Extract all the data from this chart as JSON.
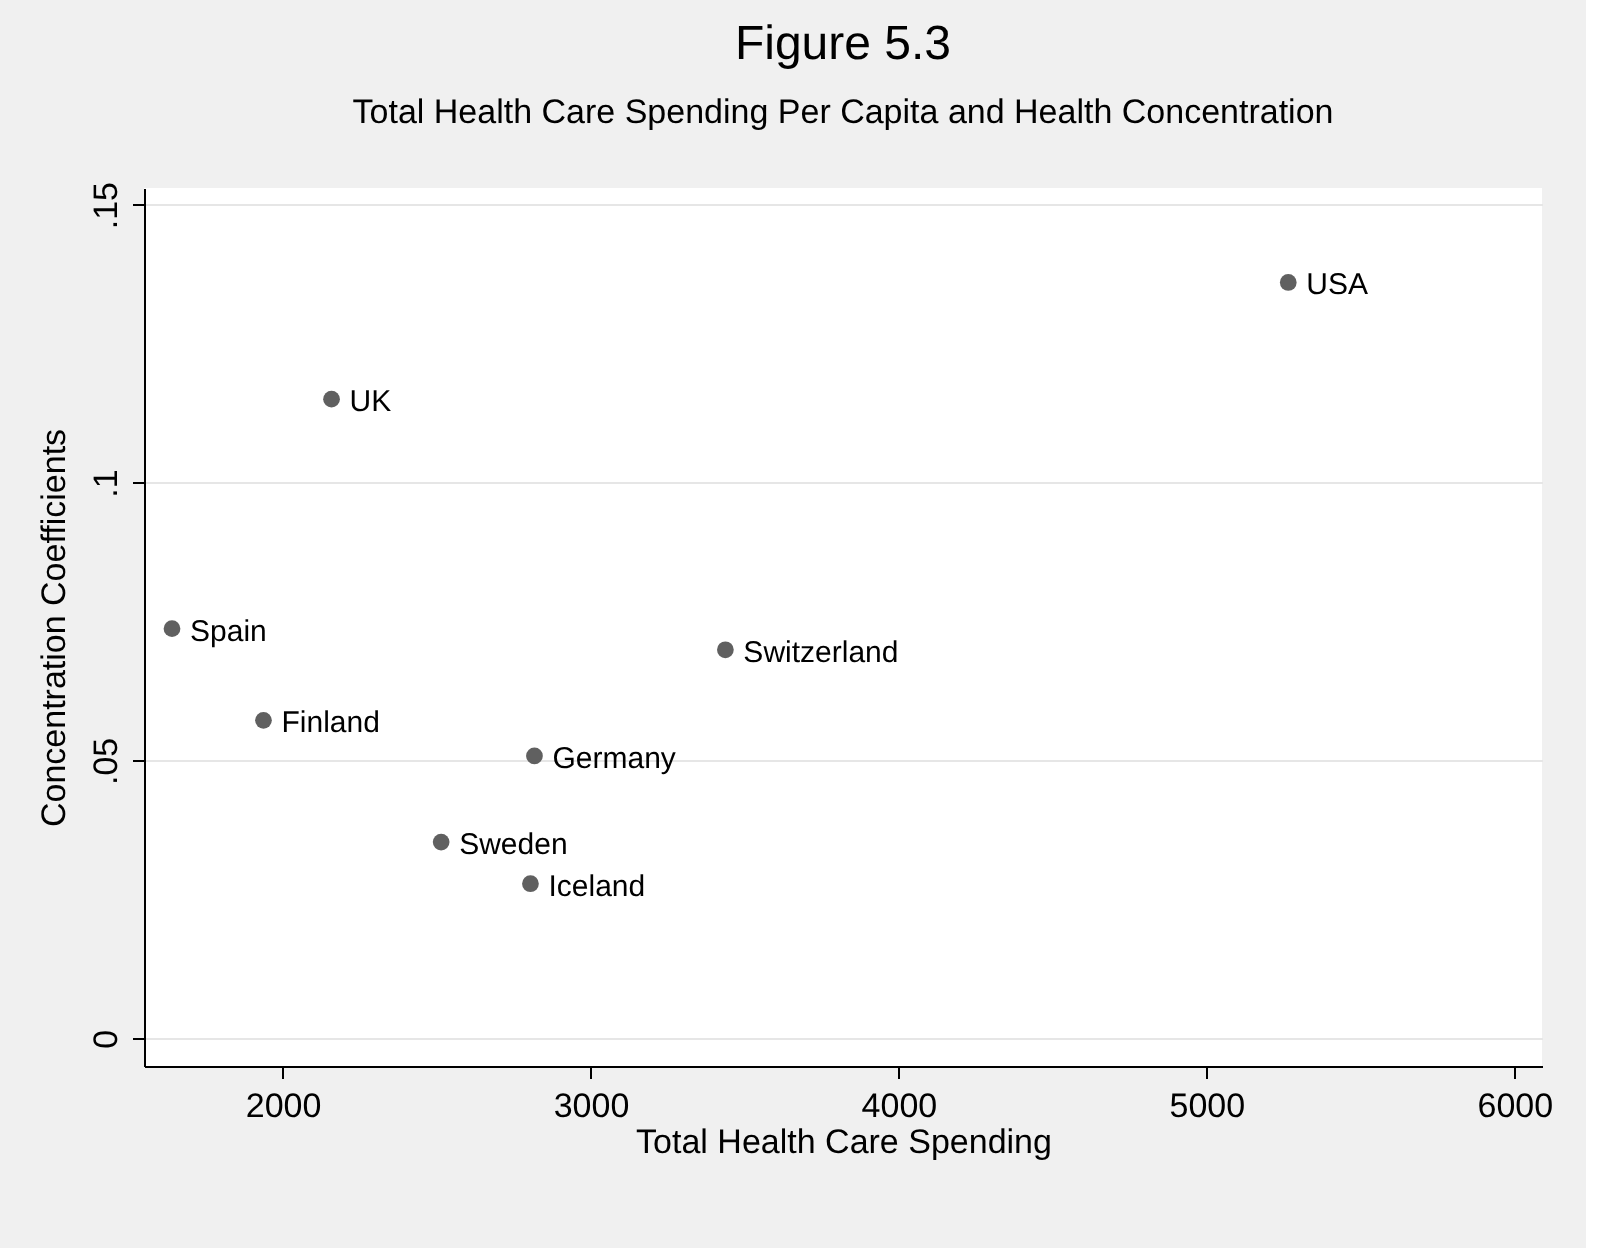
{
  "chart_data": {
    "type": "scatter",
    "title": "Figure 5.3",
    "subtitle": "Total Health Care Spending Per Capita and Health Concentration",
    "xlabel": "Total Health Care Spending",
    "ylabel": "Concentration Coefficients",
    "series": [
      {
        "color": "#606060",
        "x": [
          5266,
          2159,
          1641,
          3438,
          1938,
          2818,
          2515,
          2805
        ],
        "values": [
          0.136,
          0.115,
          0.0737,
          0.0699,
          0.0572,
          0.0508,
          0.0353,
          0.0278
        ]
      }
    ],
    "annotations": [
      {
        "text": "USA",
        "x": 5266,
        "y": 0.136
      },
      {
        "text": "UK",
        "x": 2159,
        "y": 0.115
      },
      {
        "text": "Spain",
        "x": 1641,
        "y": 0.0737
      },
      {
        "text": "Switzerland",
        "x": 3438,
        "y": 0.0699
      },
      {
        "text": "Finland",
        "x": 1938,
        "y": 0.0572
      },
      {
        "text": "Germany",
        "x": 2818,
        "y": 0.0508
      },
      {
        "text": "Sweden",
        "x": 2515,
        "y": 0.0353
      },
      {
        "text": "Iceland",
        "x": 2805,
        "y": 0.0278
      }
    ],
    "xlim": [
      1550,
      6090
    ],
    "ylim": [
      -0.005,
      0.153
    ],
    "xticks": [
      2000,
      3000,
      4000,
      5000,
      6000
    ],
    "yticks": [
      {
        "value": 0,
        "label": "0"
      },
      {
        "value": 0.05,
        "label": ".05"
      },
      {
        "value": 0.1,
        "label": ".1"
      },
      {
        "value": 0.15,
        "label": ".15"
      }
    ],
    "grid": "y",
    "marker": "circle"
  }
}
